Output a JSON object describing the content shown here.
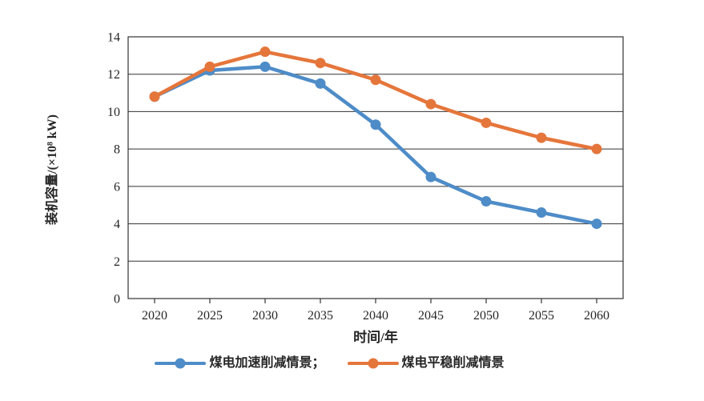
{
  "chart_data": {
    "type": "line",
    "title": "",
    "x": [
      "2020",
      "2025",
      "2030",
      "2035",
      "2040",
      "2045",
      "2050",
      "2055",
      "2060"
    ],
    "series": [
      {
        "name": "煤电加速削减情景",
        "color": "#4E8CC8",
        "values": [
          10.8,
          12.2,
          12.4,
          11.5,
          9.3,
          6.5,
          5.2,
          4.6,
          4.0
        ]
      },
      {
        "name": "煤电平稳削减情景",
        "color": "#E5763B",
        "values": [
          10.8,
          12.4,
          13.2,
          12.6,
          11.7,
          10.4,
          9.4,
          8.6,
          8.0
        ]
      }
    ],
    "legend_labels": [
      "煤电加速削减情景；",
      "煤电平稳削减情景"
    ],
    "xlabel": "时间/年",
    "ylabel": "装机容量/(×10⁸ kW)",
    "ylim": [
      0,
      14
    ],
    "ytick_step": 2,
    "grid": "horizontal",
    "legend_position": "bottom",
    "axis_color": "#333333",
    "text_color": "#262626"
  }
}
